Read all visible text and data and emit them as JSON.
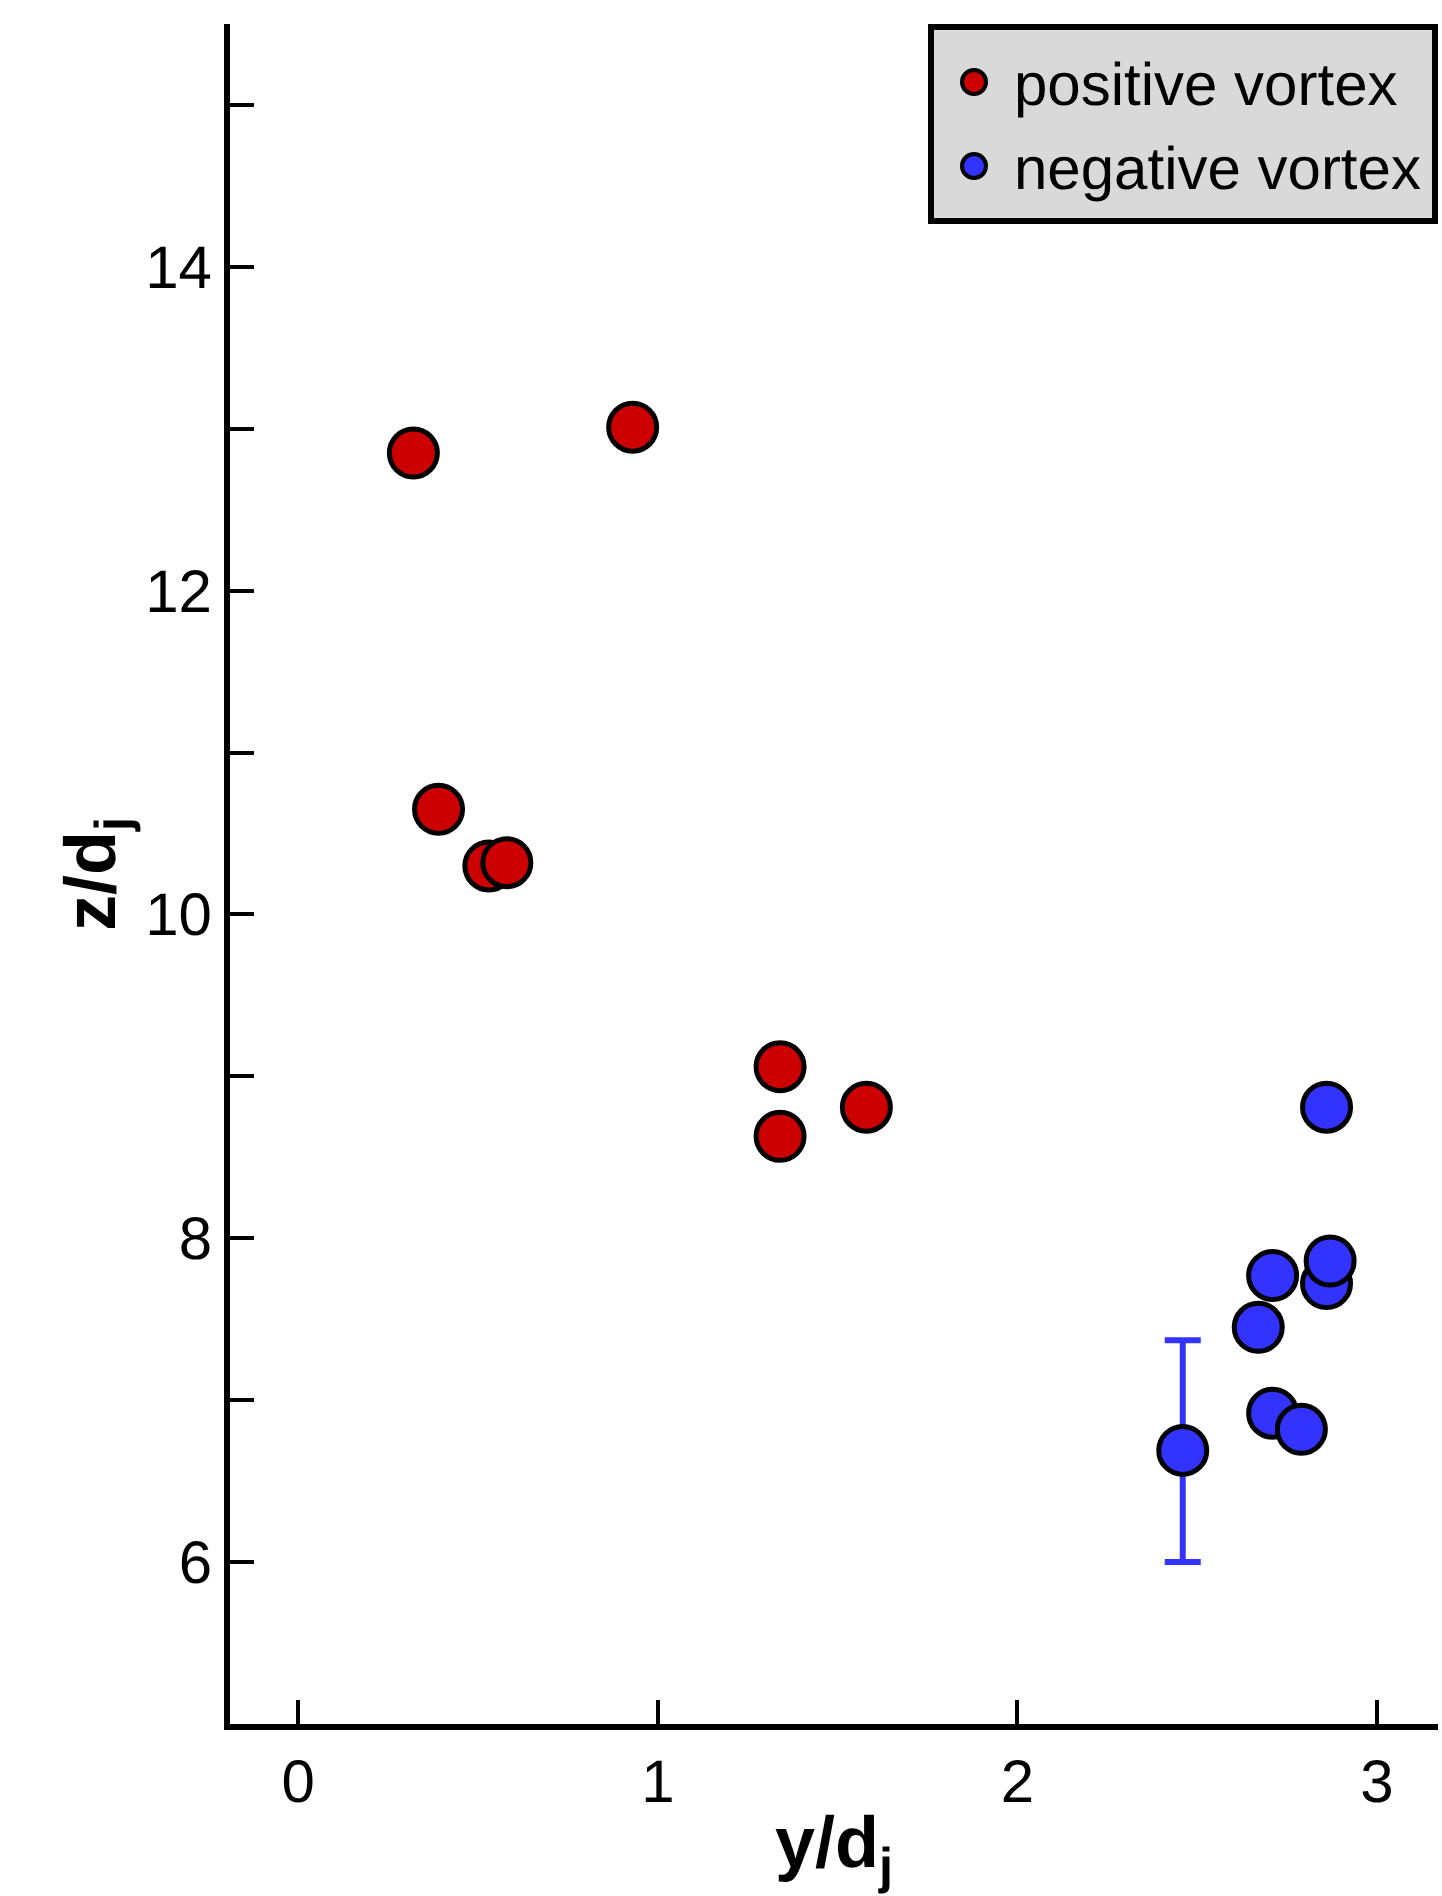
{
  "chart_data": {
    "type": "scatter",
    "xlabel": "y/d$_{j}$",
    "ylabel": "z/d$_{j}$",
    "xlim": [
      -0.19,
      3.17
    ],
    "xticks": [
      0,
      1,
      2,
      3
    ],
    "ylim": [
      5,
      15.5
    ],
    "yticks": [
      6,
      {
        "value": 7,
        "label": null
      },
      8,
      {
        "value": 9,
        "label": null
      },
      10,
      {
        "value": 11,
        "label": null
      },
      12,
      {
        "value": 13,
        "label": null
      },
      14,
      {
        "value": 15,
        "label": null
      }
    ],
    "legend": "top right",
    "marker": "circle",
    "series": [
      {
        "name": "positive vortex",
        "color": "#cc0000",
        "x": [
          0.32,
          0.93,
          0.39,
          0.53,
          0.58,
          1.34,
          1.34,
          1.58
        ],
        "values": [
          12.85,
          13.01,
          10.65,
          10.3,
          10.32,
          9.06,
          8.63,
          8.81
        ]
      },
      {
        "name": "negative vortex",
        "color": "#3333ff",
        "x": [
          2.46,
          2.67,
          2.71,
          2.71,
          2.79,
          2.86,
          2.87,
          2.86
        ],
        "values": [
          6.69,
          7.45,
          7.77,
          6.92,
          6.82,
          7.72,
          7.86,
          8.81
        ],
        "errors": [
          [
            6.0,
            7.37
          ],
          null,
          null,
          null,
          null,
          null,
          null,
          null
        ]
      }
    ]
  }
}
